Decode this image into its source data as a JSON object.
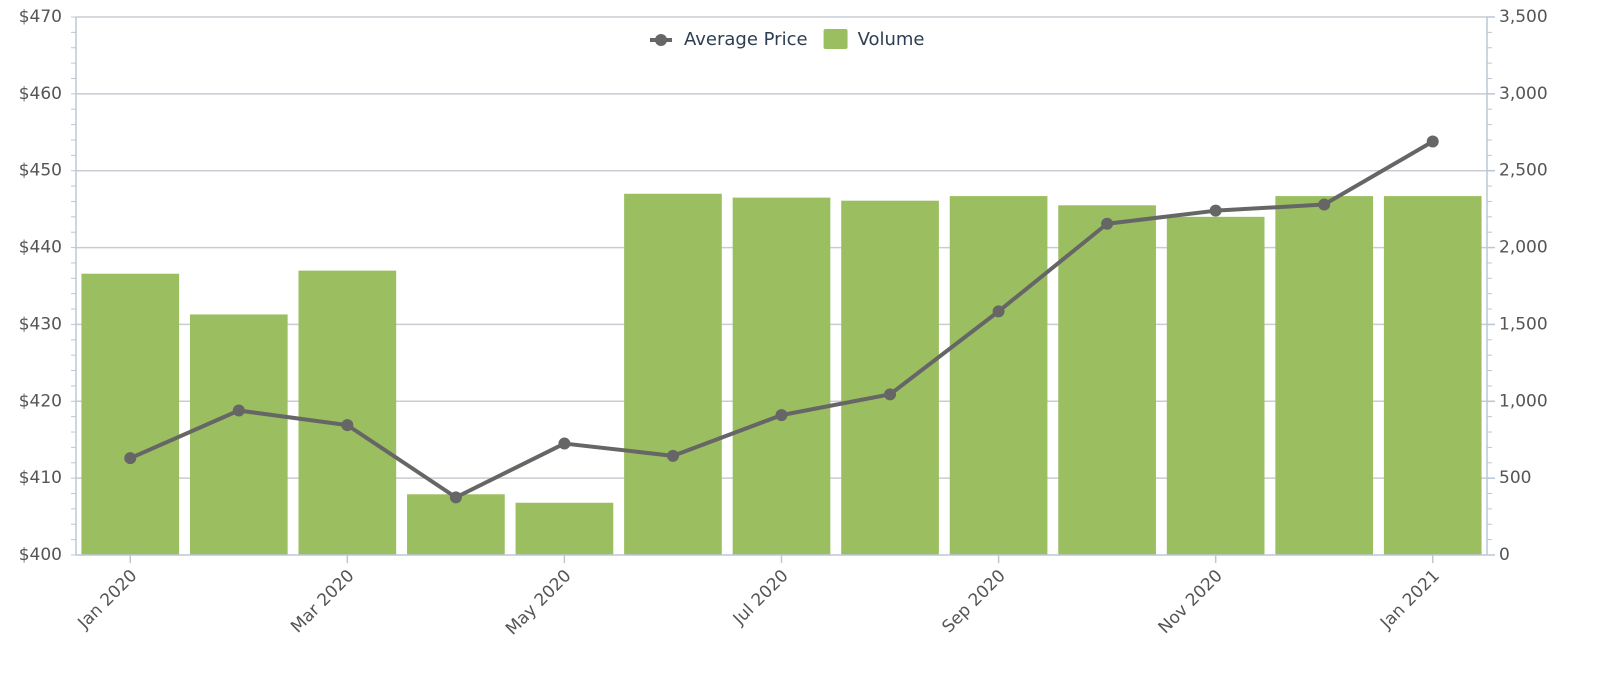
{
  "chart_data": {
    "type": "combo",
    "categories": [
      "Jan 2020",
      null,
      "Mar 2020",
      null,
      "May 2020",
      null,
      "Jul 2020",
      null,
      "Sep 2020",
      null,
      "Nov 2020",
      null,
      "Jan 2021"
    ],
    "series": [
      {
        "name": "Volume",
        "type": "bar",
        "axis": "y2",
        "color": "#9bbf60",
        "values": [
          1830,
          1565,
          1850,
          395,
          340,
          2350,
          2325,
          2305,
          2335,
          2275,
          2200,
          2335,
          2335
        ]
      },
      {
        "name": "Average Price",
        "type": "line",
        "axis": "y",
        "color": "#666666",
        "values": [
          412.6,
          418.8,
          416.9,
          407.5,
          414.5,
          412.9,
          418.2,
          420.9,
          431.7,
          443.1,
          444.8,
          445.6,
          453.8
        ]
      }
    ],
    "ylim": [
      400,
      470
    ],
    "yticks": [
      {
        "value": 400,
        "label": "$400"
      },
      {
        "value": 410,
        "label": "$410"
      },
      {
        "value": 420,
        "label": "$420"
      },
      {
        "value": 430,
        "label": "$430"
      },
      {
        "value": 440,
        "label": "$440"
      },
      {
        "value": 450,
        "label": "$450"
      },
      {
        "value": 460,
        "label": "$460"
      },
      {
        "value": 470,
        "label": "$470"
      }
    ],
    "y2lim": [
      0,
      3500
    ],
    "y2ticks": [
      0,
      500,
      {
        "value": 1000,
        "label": "1,000"
      },
      {
        "value": 1500,
        "label": "1,500"
      },
      {
        "value": 2000,
        "label": "2,000"
      },
      {
        "value": 2500,
        "label": "2,500"
      },
      {
        "value": 3000,
        "label": "3,000"
      },
      {
        "value": 3500,
        "label": "3,500"
      }
    ],
    "grid": true,
    "legend": "top"
  }
}
